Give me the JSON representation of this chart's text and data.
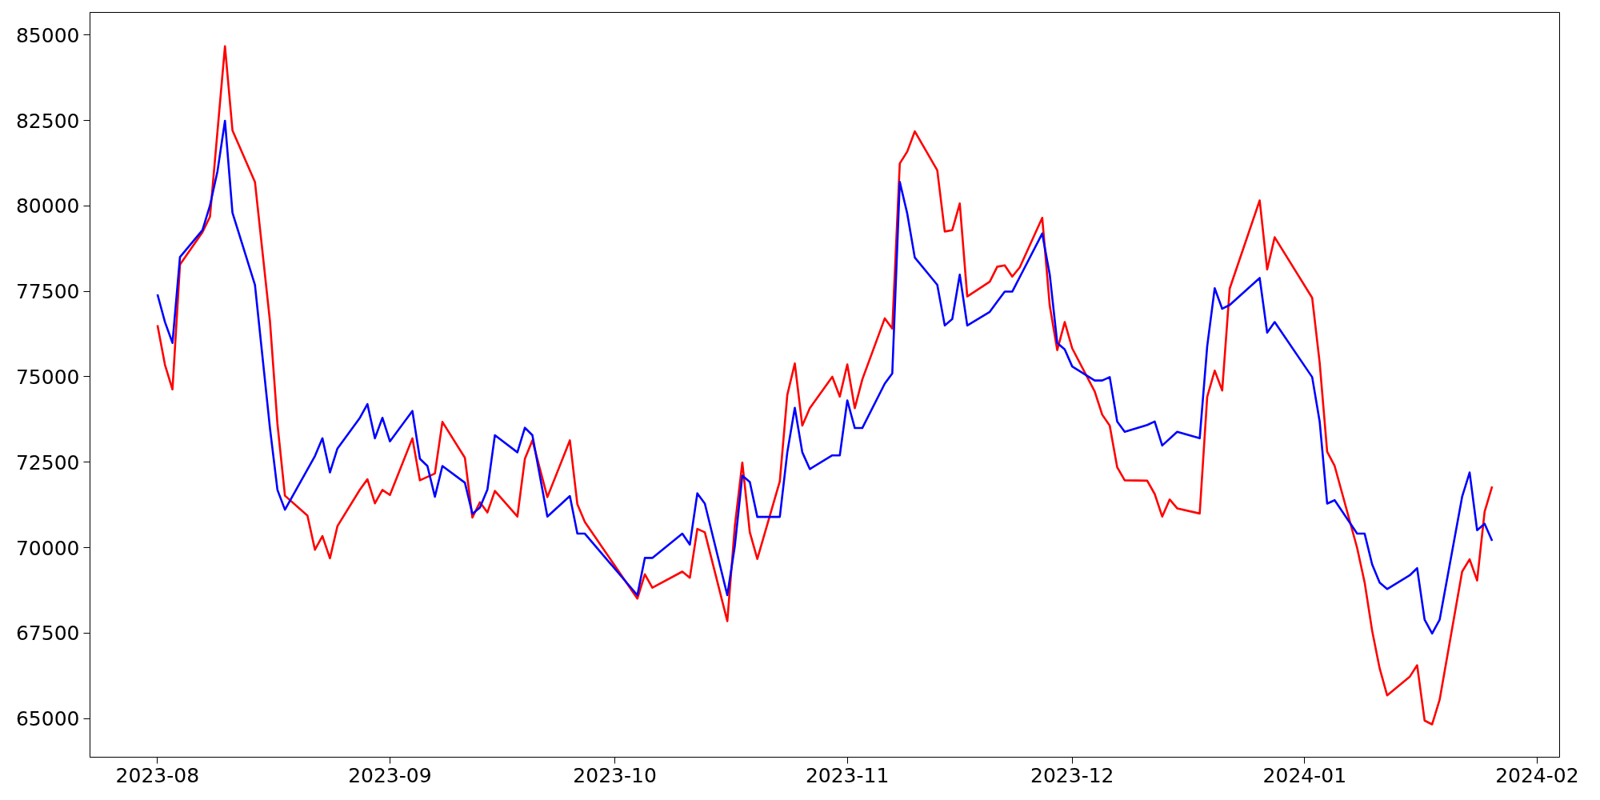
{
  "chart_data": {
    "type": "line",
    "grid": false,
    "line_style": "solid",
    "marker": "none",
    "xlim": [
      "2023-07-23",
      "2024-02-04"
    ],
    "xticks": [
      {
        "value": "2023-08-01",
        "label": "2023-08"
      },
      {
        "value": "2023-09-01",
        "label": "2023-09"
      },
      {
        "value": "2023-10-01",
        "label": "2023-10"
      },
      {
        "value": "2023-11-01",
        "label": "2023-11"
      },
      {
        "value": "2023-12-01",
        "label": "2023-12"
      },
      {
        "value": "2024-01-01",
        "label": "2024-01"
      },
      {
        "value": "2024-02-01",
        "label": "2024-02"
      }
    ],
    "ylim": [
      63870,
      85660
    ],
    "yticks": [
      65000,
      67500,
      70000,
      72500,
      75000,
      77500,
      80000,
      82500,
      85000
    ],
    "series": [
      {
        "color": "#ff0000",
        "x": [
          "2023-08-01",
          "2023-08-02",
          "2023-08-03",
          "2023-08-04",
          "2023-08-07",
          "2023-08-08",
          "2023-08-10",
          "2023-08-11",
          "2023-08-14",
          "2023-08-16",
          "2023-08-17",
          "2023-08-18",
          "2023-08-21",
          "2023-08-22",
          "2023-08-23",
          "2023-08-24",
          "2023-08-25",
          "2023-08-28",
          "2023-08-29",
          "2023-08-30",
          "2023-08-31",
          "2023-09-01",
          "2023-09-04",
          "2023-09-05",
          "2023-09-07",
          "2023-09-08",
          "2023-09-11",
          "2023-09-12",
          "2023-09-13",
          "2023-09-14",
          "2023-09-15",
          "2023-09-18",
          "2023-09-19",
          "2023-09-20",
          "2023-09-22",
          "2023-09-25",
          "2023-09-26",
          "2023-09-27",
          "2023-10-04",
          "2023-10-05",
          "2023-10-06",
          "2023-10-10",
          "2023-10-11",
          "2023-10-12",
          "2023-10-13",
          "2023-10-16",
          "2023-10-17",
          "2023-10-18",
          "2023-10-19",
          "2023-10-20",
          "2023-10-23",
          "2023-10-24",
          "2023-10-25",
          "2023-10-26",
          "2023-10-27",
          "2023-10-30",
          "2023-10-31",
          "2023-11-01",
          "2023-11-02",
          "2023-11-03",
          "2023-11-06",
          "2023-11-07",
          "2023-11-08",
          "2023-11-09",
          "2023-11-10",
          "2023-11-13",
          "2023-11-14",
          "2023-11-15",
          "2023-11-16",
          "2023-11-17",
          "2023-11-20",
          "2023-11-21",
          "2023-11-22",
          "2023-11-23",
          "2023-11-24",
          "2023-11-27",
          "2023-11-28",
          "2023-11-29",
          "2023-11-30",
          "2023-12-01",
          "2023-12-04",
          "2023-12-05",
          "2023-12-06",
          "2023-12-07",
          "2023-12-08",
          "2023-12-11",
          "2023-12-12",
          "2023-12-13",
          "2023-12-14",
          "2023-12-15",
          "2023-12-18",
          "2023-12-19",
          "2023-12-20",
          "2023-12-21",
          "2023-12-22",
          "2023-12-26",
          "2023-12-27",
          "2023-12-28",
          "2024-01-02",
          "2024-01-03",
          "2024-01-04",
          "2024-01-05",
          "2024-01-08",
          "2024-01-09",
          "2024-01-10",
          "2024-01-11",
          "2024-01-12",
          "2024-01-15",
          "2024-01-16",
          "2024-01-17",
          "2024-01-18",
          "2024-01-19",
          "2024-01-22",
          "2024-01-23",
          "2024-01-24",
          "2024-01-25",
          "2024-01-26"
        ],
        "values": [
          76510,
          75350,
          74630,
          78280,
          79230,
          79680,
          84670,
          82210,
          80700,
          76630,
          73620,
          71520,
          70940,
          69940,
          70340,
          69690,
          70630,
          71700,
          72000,
          71300,
          71690,
          71540,
          73200,
          71970,
          72170,
          73680,
          72630,
          70880,
          71330,
          71030,
          71660,
          70910,
          72600,
          73140,
          71480,
          73140,
          71270,
          70750,
          68510,
          69220,
          68830,
          69300,
          69120,
          70550,
          70450,
          67850,
          70630,
          72490,
          70450,
          69670,
          71940,
          74470,
          75390,
          73570,
          74080,
          75000,
          74420,
          75360,
          74080,
          74920,
          76710,
          76410,
          81240,
          81590,
          82180,
          81040,
          79250,
          79290,
          80070,
          77350,
          77780,
          78220,
          78260,
          77930,
          78200,
          79650,
          77080,
          75780,
          76600,
          75830,
          74570,
          73890,
          73570,
          72350,
          71970,
          71960,
          71570,
          70910,
          71410,
          71150,
          71000,
          74410,
          75180,
          74600,
          77580,
          80160,
          78140,
          79080,
          77310,
          75410,
          72810,
          72390,
          69990,
          68980,
          67570,
          66470,
          65680,
          66220,
          66560,
          64940,
          64830,
          65550,
          69300,
          69660,
          69040,
          71050,
          71790
        ]
      },
      {
        "color": "#0000ff",
        "x": [
          "2023-08-01",
          "2023-08-02",
          "2023-08-03",
          "2023-08-04",
          "2023-08-07",
          "2023-08-08",
          "2023-08-09",
          "2023-08-10",
          "2023-08-11",
          "2023-08-14",
          "2023-08-16",
          "2023-08-17",
          "2023-08-18",
          "2023-08-22",
          "2023-08-23",
          "2023-08-24",
          "2023-08-25",
          "2023-08-28",
          "2023-08-29",
          "2023-08-30",
          "2023-08-31",
          "2023-09-01",
          "2023-09-04",
          "2023-09-05",
          "2023-09-06",
          "2023-09-07",
          "2023-09-08",
          "2023-09-11",
          "2023-09-12",
          "2023-09-13",
          "2023-09-14",
          "2023-09-15",
          "2023-09-18",
          "2023-09-19",
          "2023-09-20",
          "2023-09-22",
          "2023-09-25",
          "2023-09-26",
          "2023-09-27",
          "2023-10-04",
          "2023-10-05",
          "2023-10-06",
          "2023-10-10",
          "2023-10-11",
          "2023-10-12",
          "2023-10-13",
          "2023-10-16",
          "2023-10-17",
          "2023-10-18",
          "2023-10-19",
          "2023-10-20",
          "2023-10-23",
          "2023-10-24",
          "2023-10-25",
          "2023-10-26",
          "2023-10-27",
          "2023-10-30",
          "2023-10-31",
          "2023-11-01",
          "2023-11-02",
          "2023-11-03",
          "2023-11-06",
          "2023-11-07",
          "2023-11-08",
          "2023-11-09",
          "2023-11-10",
          "2023-11-13",
          "2023-11-14",
          "2023-11-15",
          "2023-11-16",
          "2023-11-17",
          "2023-11-20",
          "2023-11-21",
          "2023-11-22",
          "2023-11-23",
          "2023-11-27",
          "2023-11-28",
          "2023-11-29",
          "2023-11-30",
          "2023-12-01",
          "2023-12-04",
          "2023-12-05",
          "2023-12-06",
          "2023-12-07",
          "2023-12-08",
          "2023-12-11",
          "2023-12-12",
          "2023-12-13",
          "2023-12-15",
          "2023-12-18",
          "2023-12-19",
          "2023-12-20",
          "2023-12-21",
          "2023-12-22",
          "2023-12-26",
          "2023-12-27",
          "2023-12-28",
          "2024-01-02",
          "2024-01-03",
          "2024-01-04",
          "2024-01-05",
          "2024-01-08",
          "2024-01-09",
          "2024-01-10",
          "2024-01-11",
          "2024-01-12",
          "2024-01-15",
          "2024-01-16",
          "2024-01-17",
          "2024-01-18",
          "2024-01-19",
          "2024-01-22",
          "2024-01-23",
          "2024-01-24",
          "2024-01-25",
          "2024-01-26"
        ],
        "values": [
          77410,
          76600,
          75990,
          78500,
          79290,
          80010,
          81010,
          82490,
          79800,
          77690,
          73500,
          71690,
          71110,
          72680,
          73200,
          72200,
          72900,
          73800,
          74200,
          73200,
          73800,
          73110,
          74000,
          72600,
          72390,
          71490,
          72390,
          71900,
          70990,
          71170,
          71700,
          73290,
          72790,
          73510,
          73290,
          70910,
          71510,
          70410,
          70410,
          68610,
          69700,
          69700,
          70410,
          70090,
          71590,
          71290,
          68610,
          70050,
          72110,
          71920,
          70900,
          70900,
          72790,
          74090,
          72790,
          72300,
          72700,
          72700,
          74310,
          73500,
          73500,
          74800,
          75100,
          80700,
          79770,
          78490,
          77690,
          76500,
          76690,
          77990,
          76500,
          76900,
          77200,
          77490,
          77490,
          79190,
          77990,
          75990,
          75800,
          75300,
          74890,
          74890,
          74990,
          73690,
          73390,
          73590,
          73690,
          72990,
          73390,
          73200,
          75890,
          77590,
          76990,
          77100,
          77890,
          76290,
          76600,
          74990,
          73690,
          71290,
          71390,
          70410,
          70410,
          69510,
          68980,
          68790,
          69190,
          69400,
          67890,
          67490,
          67890,
          71490,
          72200,
          70510,
          70700,
          70200
        ]
      }
    ]
  }
}
